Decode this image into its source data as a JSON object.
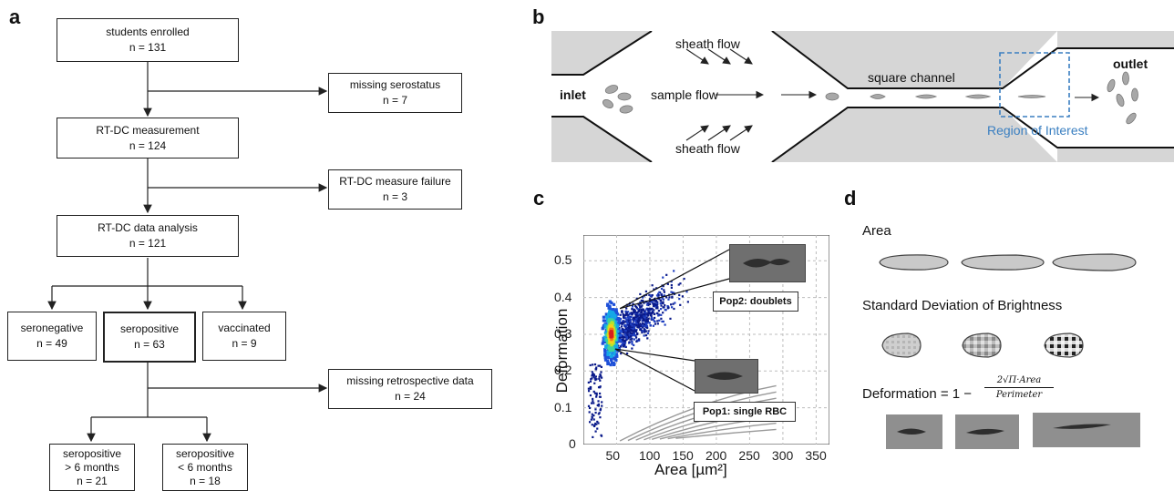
{
  "panels": {
    "a": "a",
    "b": "b",
    "c": "c",
    "d": "d"
  },
  "flow": {
    "enrolled": {
      "title": "students enrolled",
      "n": "n =  131"
    },
    "missing_sero": {
      "title": "missing serostatus",
      "n": "n = 7"
    },
    "measurement": {
      "title": "RT-DC measurement",
      "n": "n =  124"
    },
    "failure": {
      "title": "RT-DC measure failure",
      "n": "n = 3"
    },
    "analysis": {
      "title": "RT-DC data analysis",
      "n": "n =  121"
    },
    "seronegative": {
      "title": "seronegative",
      "n": "n = 49"
    },
    "seropositive": {
      "title": "seropositive",
      "n": "n = 63"
    },
    "vaccinated": {
      "title": "vaccinated",
      "n": "n = 9"
    },
    "missing_retro": {
      "title": "missing retrospective data",
      "n": "n = 24"
    },
    "sp_gt6": {
      "title": "seropositive",
      "sub": "> 6 months",
      "n": "n = 21"
    },
    "sp_lt6": {
      "title": "seropositive",
      "sub": "< 6 months",
      "n": "n = 18"
    }
  },
  "channel": {
    "sheath_top": "sheath flow",
    "sheath_bottom": "sheath flow",
    "inlet": "inlet",
    "sample": "sample flow",
    "square": "square channel",
    "outlet": "outlet",
    "roi": "Region of Interest",
    "colors": {
      "wall": "#d6d6d6",
      "roi": "#3a7fc1"
    }
  },
  "chart_data": {
    "type": "scatter",
    "xlabel": "Area [µm²]",
    "ylabel": "Deformation",
    "xlim": [
      0,
      370
    ],
    "ylim": [
      0,
      0.57
    ],
    "xticks": [
      "50",
      "100",
      "150",
      "200",
      "250",
      "300",
      "350"
    ],
    "yticks": [
      "0",
      "0.1",
      "0.2",
      "0.3",
      "0.4",
      "0.5"
    ],
    "grid": true,
    "annotations": [
      {
        "label": "Pop2: doublets",
        "point_x": 55,
        "point_y": 0.37
      },
      {
        "label": "Pop1: single RBC",
        "point_x": 48,
        "point_y": 0.26
      }
    ],
    "density_peak": {
      "x": 42,
      "y": 0.3
    }
  },
  "features": {
    "area": "Area",
    "std": "Standard Deviation of Brightness",
    "deformation_prefix": "Deformation = 1 −",
    "numerator": "2√Π·Area",
    "denominator": "Perimeter"
  }
}
